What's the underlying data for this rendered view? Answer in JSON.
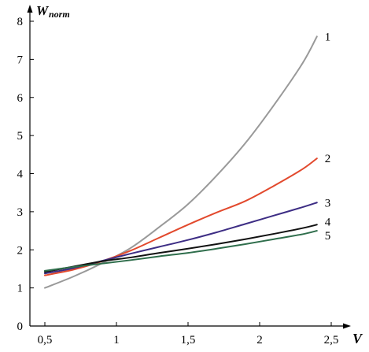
{
  "chart_data": {
    "type": "line",
    "title": "",
    "xlabel": "V",
    "ylabel": {
      "main": "W",
      "sub": "norm"
    },
    "xlim": [
      0.5,
      2.5
    ],
    "ylim": [
      0,
      8
    ],
    "grid": false,
    "xticks": [
      0.5,
      1,
      1.5,
      2,
      2.5
    ],
    "xtick_labels": [
      "0,5",
      "1",
      "1,5",
      "2",
      "2,5"
    ],
    "yticks": [
      0,
      1,
      2,
      3,
      4,
      5,
      6,
      7,
      8
    ],
    "ytick_labels": [
      "0",
      "1",
      "2",
      "3",
      "4",
      "5",
      "6",
      "7",
      "8"
    ],
    "series": [
      {
        "label": "1",
        "color": "#999999",
        "x": [
          0.5,
          0.7,
          0.9,
          1.1,
          1.3,
          1.5,
          1.7,
          1.9,
          2.1,
          2.3,
          2.4
        ],
        "y": [
          1.0,
          1.3,
          1.65,
          2.05,
          2.6,
          3.2,
          3.95,
          4.8,
          5.8,
          6.9,
          7.6
        ]
      },
      {
        "label": "2",
        "color": "#e2492d",
        "x": [
          0.5,
          0.7,
          0.9,
          1.1,
          1.3,
          1.5,
          1.7,
          1.9,
          2.1,
          2.3,
          2.4
        ],
        "y": [
          1.33,
          1.48,
          1.7,
          1.98,
          2.32,
          2.66,
          2.98,
          3.28,
          3.68,
          4.12,
          4.4
        ]
      },
      {
        "label": "3",
        "color": "#3d2d84",
        "x": [
          0.5,
          0.7,
          0.9,
          1.1,
          1.3,
          1.5,
          1.7,
          1.9,
          2.1,
          2.3,
          2.4
        ],
        "y": [
          1.38,
          1.52,
          1.71,
          1.9,
          2.08,
          2.26,
          2.46,
          2.68,
          2.9,
          3.12,
          3.24
        ]
      },
      {
        "label": "4",
        "color": "#111111",
        "x": [
          0.5,
          0.7,
          0.9,
          1.1,
          1.3,
          1.5,
          1.7,
          1.9,
          2.1,
          2.3,
          2.4
        ],
        "y": [
          1.42,
          1.56,
          1.7,
          1.8,
          1.92,
          2.03,
          2.15,
          2.28,
          2.42,
          2.57,
          2.66
        ]
      },
      {
        "label": "5",
        "color": "#2f6e4c",
        "x": [
          0.5,
          0.7,
          0.9,
          1.1,
          1.3,
          1.5,
          1.7,
          1.9,
          2.1,
          2.3,
          2.4
        ],
        "y": [
          1.45,
          1.55,
          1.64,
          1.73,
          1.83,
          1.92,
          2.03,
          2.15,
          2.28,
          2.41,
          2.5
        ]
      }
    ]
  }
}
